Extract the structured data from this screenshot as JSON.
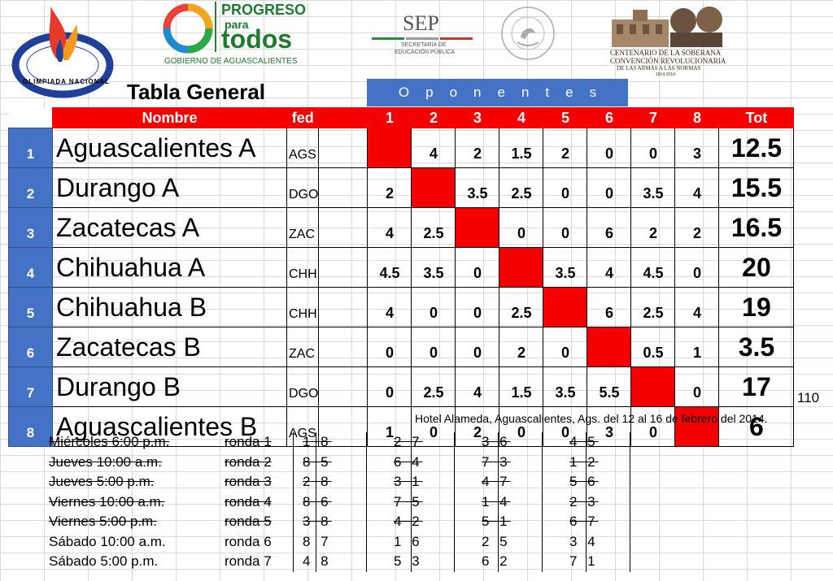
{
  "logos": {
    "olimpiada": {
      "text": "OLIMPIADA NACIONAL"
    },
    "progreso": {
      "line1": "PROGRESO",
      "line2": "para",
      "line3": "todos",
      "sub": "GOBIERNO DE AGUASCALIENTES"
    },
    "sep": {
      "title": "SEP",
      "sub1": "SECRETARÍA DE",
      "sub2": "EDUCACIÓN PÚBLICA"
    },
    "escudo": {
      "text": "ESTADOS UNIDOS MEXICANOS"
    },
    "centenario": {
      "line1": "CENTENARIO DE LA SOBERANA",
      "line2": "CONVENCIÓN REVOLUCIONARIA",
      "line3": "DE LAS ARMAS A LAS NORMAS",
      "years": "1914-2014"
    }
  },
  "title": "Tabla General",
  "oponentes_label": "Oponentes",
  "headers": {
    "nombre": "Nombre",
    "fed": "fed",
    "cols": [
      "1",
      "2",
      "3",
      "4",
      "5",
      "6",
      "7",
      "8"
    ],
    "tot": "Tot"
  },
  "rows": [
    {
      "idx": "1",
      "name": "Aguascalientes A",
      "fed": "AGS",
      "scores": [
        "",
        "4",
        "2",
        "1.5",
        "2",
        "0",
        "0",
        "3"
      ],
      "tot": "12.5"
    },
    {
      "idx": "2",
      "name": "Durango A",
      "fed": "DGO",
      "scores": [
        "2",
        "",
        "3.5",
        "2.5",
        "0",
        "0",
        "3.5",
        "4"
      ],
      "tot": "15.5"
    },
    {
      "idx": "3",
      "name": "Zacatecas A",
      "fed": "ZAC",
      "scores": [
        "4",
        "2.5",
        "",
        "0",
        "0",
        "6",
        "2",
        "2"
      ],
      "tot": "16.5"
    },
    {
      "idx": "4",
      "name": "Chihuahua A",
      "fed": "CHH",
      "scores": [
        "4.5",
        "3.5",
        "0",
        "",
        "3.5",
        "4",
        "4.5",
        "0"
      ],
      "tot": "20"
    },
    {
      "idx": "5",
      "name": "Chihuahua B",
      "fed": "CHH",
      "scores": [
        "4",
        "0",
        "0",
        "2.5",
        "",
        "6",
        "2.5",
        "4"
      ],
      "tot": "19"
    },
    {
      "idx": "6",
      "name": "Zacatecas B",
      "fed": "ZAC",
      "scores": [
        "0",
        "0",
        "0",
        "2",
        "0",
        "",
        "0.5",
        "1"
      ],
      "tot": "3.5"
    },
    {
      "idx": "7",
      "name": "Durango B",
      "fed": "DGO",
      "scores": [
        "0",
        "2.5",
        "4",
        "1.5",
        "3.5",
        "5.5",
        "",
        "0"
      ],
      "tot": "17"
    },
    {
      "idx": "8",
      "name": "Aguascalientes B",
      "fed": "AGS",
      "scores": [
        "1",
        "0",
        "2",
        "0",
        "0",
        "3",
        "0",
        ""
      ],
      "tot": "6"
    }
  ],
  "extra_total": "110",
  "hotel_note": "Hotel Alameda, Aguascalientes, Ags. del 12 al 16 de febrero del 2014.",
  "schedule": [
    {
      "day": "Miércoles 6:00 p.m.",
      "ronda": "ronda 1",
      "pairs": [
        "1 8",
        "2 7",
        "3 6",
        "4 5"
      ],
      "struck": true
    },
    {
      "day": "Jueves 10:00 a.m.",
      "ronda": "ronda 2",
      "pairs": [
        "8 5",
        "6 4",
        "7 3",
        "1 2"
      ],
      "struck": true
    },
    {
      "day": "Jueves 5:00 p.m.",
      "ronda": "ronda 3",
      "pairs": [
        "2 8",
        "3 1",
        "4 7",
        "5 6"
      ],
      "struck": true
    },
    {
      "day": "Viernes 10:00 a.m.",
      "ronda": "ronda 4",
      "pairs": [
        "8 6",
        "7 5",
        "1 4",
        "2 3"
      ],
      "struck": true
    },
    {
      "day": "Viernes 5:00 p.m.",
      "ronda": "ronda 5",
      "pairs": [
        "3 8",
        "4 2",
        "5 1",
        "6 7"
      ],
      "struck": true
    },
    {
      "day": "Sábado 10:00 a.m.",
      "ronda": "ronda 6",
      "pairs": [
        "8 7",
        "1 6",
        "2 5",
        "3 4"
      ],
      "struck": false
    },
    {
      "day": "Sábado 5:00 p.m.",
      "ronda": "ronda 7",
      "pairs": [
        "4 8",
        "5 3",
        "6 2",
        "7 1"
      ],
      "struck": false
    }
  ]
}
